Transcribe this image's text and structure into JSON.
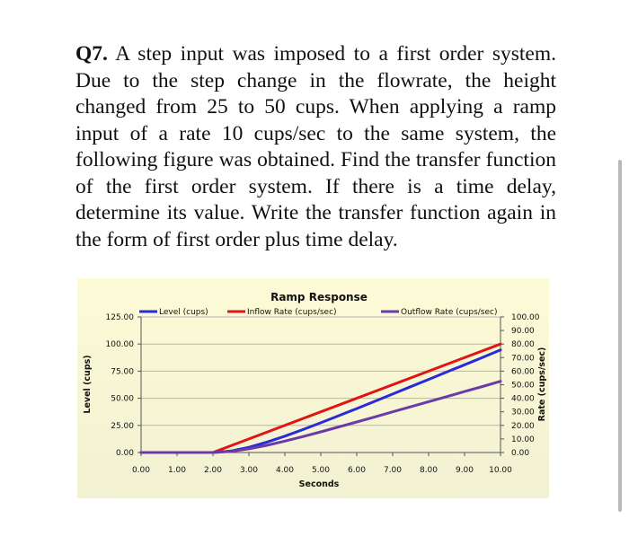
{
  "question": {
    "number": "Q7.",
    "text": "A step input was imposed to a first order system. Due to the step change in the flowrate, the height changed from 25 to 50 cups. When applying a ramp input of a rate 10 cups/sec to the same system, the following figure was obtained. Find the transfer function of the first order system. If there is a time delay, determine its value. Write the transfer function again in the form of first order plus time delay."
  },
  "chart_data": {
    "type": "line",
    "title": "Ramp Response",
    "xlabel": "Seconds",
    "ylabel_left": "Level (cups)",
    "ylabel_right": "Rate (cups/sec)",
    "xlim": [
      0,
      10
    ],
    "ylim_left": [
      0,
      125
    ],
    "ylim_right": [
      0,
      100
    ],
    "x_ticks": [
      "0.00",
      "1.00",
      "2.00",
      "3.00",
      "4.00",
      "5.00",
      "6.00",
      "7.00",
      "8.00",
      "9.00",
      "10.00"
    ],
    "y_ticks_left": [
      "0.00",
      "25.00",
      "50.00",
      "75.00",
      "100.00",
      "125.00"
    ],
    "y_ticks_right": [
      "0.00",
      "10.00",
      "20.00",
      "30.00",
      "40.00",
      "50.00",
      "60.00",
      "70.00",
      "80.00",
      "90.00",
      "100.00"
    ],
    "legend_position": "top",
    "grid": true,
    "series": [
      {
        "name": "Level (cups)",
        "axis": "left",
        "color": "#2a2ad6",
        "x": [
          0,
          2,
          2.5,
          3,
          3.5,
          4,
          4.5,
          5,
          5.5,
          6,
          6.5,
          7,
          7.5,
          8,
          8.5,
          9,
          9.5,
          10
        ],
        "y": [
          0,
          0,
          1.4,
          4.8,
          9.6,
          15.1,
          21.1,
          27.4,
          33.9,
          40.5,
          47.2,
          53.9,
          60.7,
          67.4,
          74.2,
          80.9,
          87.7,
          94.5
        ]
      },
      {
        "name": "Inflow Rate (cups/sec)",
        "axis": "right",
        "color": "#e01515",
        "x": [
          0,
          2,
          10
        ],
        "y": [
          0,
          0,
          80
        ]
      },
      {
        "name": "Outflow Rate (cups/sec)",
        "axis": "right",
        "color": "#6b3aa8",
        "x": [
          0,
          2,
          2.5,
          3,
          3.5,
          4,
          4.5,
          5,
          5.5,
          6,
          6.5,
          7,
          7.5,
          8,
          8.5,
          9,
          9.5,
          10
        ],
        "y": [
          0,
          0,
          0.8,
          2.7,
          5.3,
          8.4,
          11.7,
          15.2,
          18.9,
          22.5,
          26.2,
          30.0,
          33.7,
          37.5,
          41.2,
          45.0,
          48.7,
          52.5
        ]
      }
    ]
  }
}
